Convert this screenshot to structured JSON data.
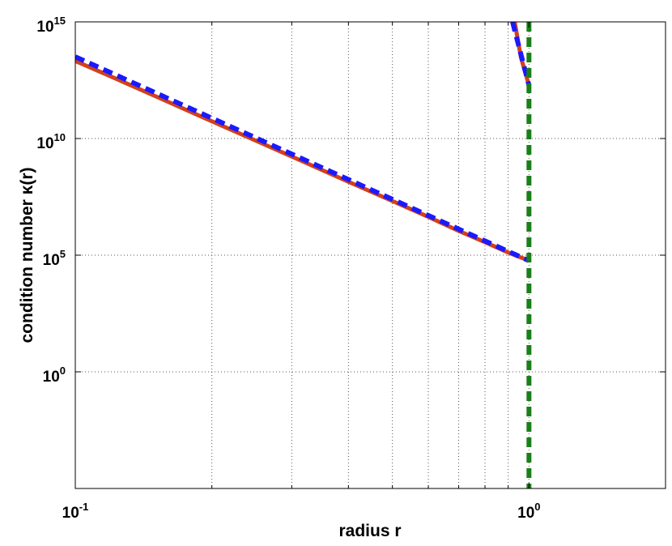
{
  "chart_data": {
    "type": "line",
    "xlabel": "radius r",
    "ylabel": "condition number κ(r)",
    "xscale": "log",
    "yscale": "log",
    "grid": true,
    "xlim": [
      0.1,
      2
    ],
    "ylim": [
      1e-05,
      1000000000000000.0
    ],
    "xticks": [
      {
        "value": 0.1,
        "label": "10^-1"
      },
      {
        "value": 1,
        "label": "10^0"
      }
    ],
    "xminor": [
      0.2,
      0.3,
      0.4,
      0.5,
      0.6,
      0.7,
      0.8,
      0.9,
      2
    ],
    "yticks": [
      {
        "value": 1,
        "label": "10^0"
      },
      {
        "value": 100000,
        "label": "10^5"
      },
      {
        "value": 10000000000,
        "label": "10^10"
      },
      {
        "value": 1000000000000000,
        "label": "10^15"
      }
    ],
    "series": [
      {
        "color": "#d4401c",
        "dash": false,
        "x": [
          0.1,
          0.12,
          0.15,
          0.2,
          0.25,
          0.3,
          0.4,
          0.5,
          0.6,
          0.7,
          0.8,
          0.9,
          0.98
        ],
        "values": [
          21000000000000,
          4500000000000,
          660000000000,
          55000000000,
          8100000000,
          1700000000,
          140000000,
          21000000,
          4400000,
          1100000,
          360000,
          130000,
          68000
        ]
      },
      {
        "color": "#d4401c",
        "dash": false,
        "x": [
          0.93,
          0.96,
          1
        ],
        "values": [
          1000000000000000,
          30000000000000,
          1900000000000
        ]
      },
      {
        "color": "#1a1aff",
        "dash": true,
        "x": [
          0.1,
          1
        ],
        "values": [
          32000000000000,
          58000
        ]
      },
      {
        "color": "#1a1aff",
        "dash": true,
        "x": [
          0.92,
          1
        ],
        "values": [
          1000000000000000,
          1900000000000
        ]
      },
      {
        "color": "#1a7f1a",
        "dash": true,
        "x": [
          1,
          1
        ],
        "values": [
          1000000000000000,
          1e-05
        ]
      }
    ]
  }
}
